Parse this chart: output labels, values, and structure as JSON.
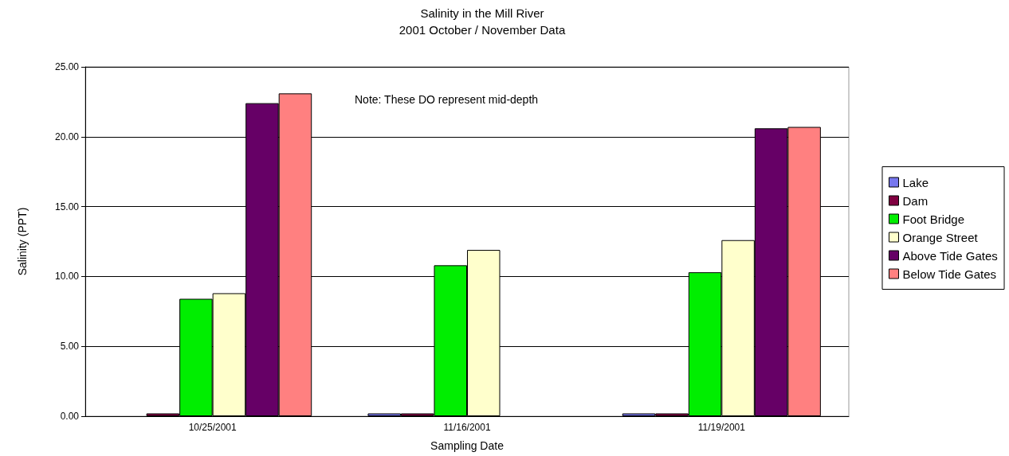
{
  "chart_data": {
    "type": "bar",
    "title": "Salinity in the Mill River",
    "subtitle": "2001 October / November Data",
    "xlabel": "Sampling Date",
    "ylabel": "Salinity (PPT)",
    "annotations": [
      "Note: These DO represent mid-depth"
    ],
    "categories": [
      "10/25/2001",
      "11/16/2001",
      "11/19/2001"
    ],
    "series": [
      {
        "name": "Lake",
        "color": "#7777ee",
        "values": [
          null,
          0.2,
          0.2
        ]
      },
      {
        "name": "Dam",
        "color": "#800040",
        "values": [
          0.2,
          0.2,
          0.2
        ]
      },
      {
        "name": "Foot Bridge",
        "color": "#00ee00",
        "values": [
          8.4,
          10.8,
          10.3
        ]
      },
      {
        "name": "Orange Street",
        "color": "#ffffcc",
        "values": [
          8.8,
          11.9,
          12.6
        ]
      },
      {
        "name": "Above Tide Gates",
        "color": "#660066",
        "values": [
          22.4,
          null,
          20.6
        ]
      },
      {
        "name": "Below Tide Gates",
        "color": "#ff8080",
        "values": [
          23.1,
          null,
          20.7
        ]
      }
    ],
    "ylim": [
      0,
      25
    ],
    "yticks": [
      {
        "value": 0,
        "label": "0.00"
      },
      {
        "value": 5,
        "label": "5.00"
      },
      {
        "value": 10,
        "label": "10.00"
      },
      {
        "value": 15,
        "label": "15.00"
      },
      {
        "value": 20,
        "label": "20.00"
      },
      {
        "value": 25,
        "label": "25.00"
      }
    ],
    "grid": "y",
    "legend": "right"
  }
}
